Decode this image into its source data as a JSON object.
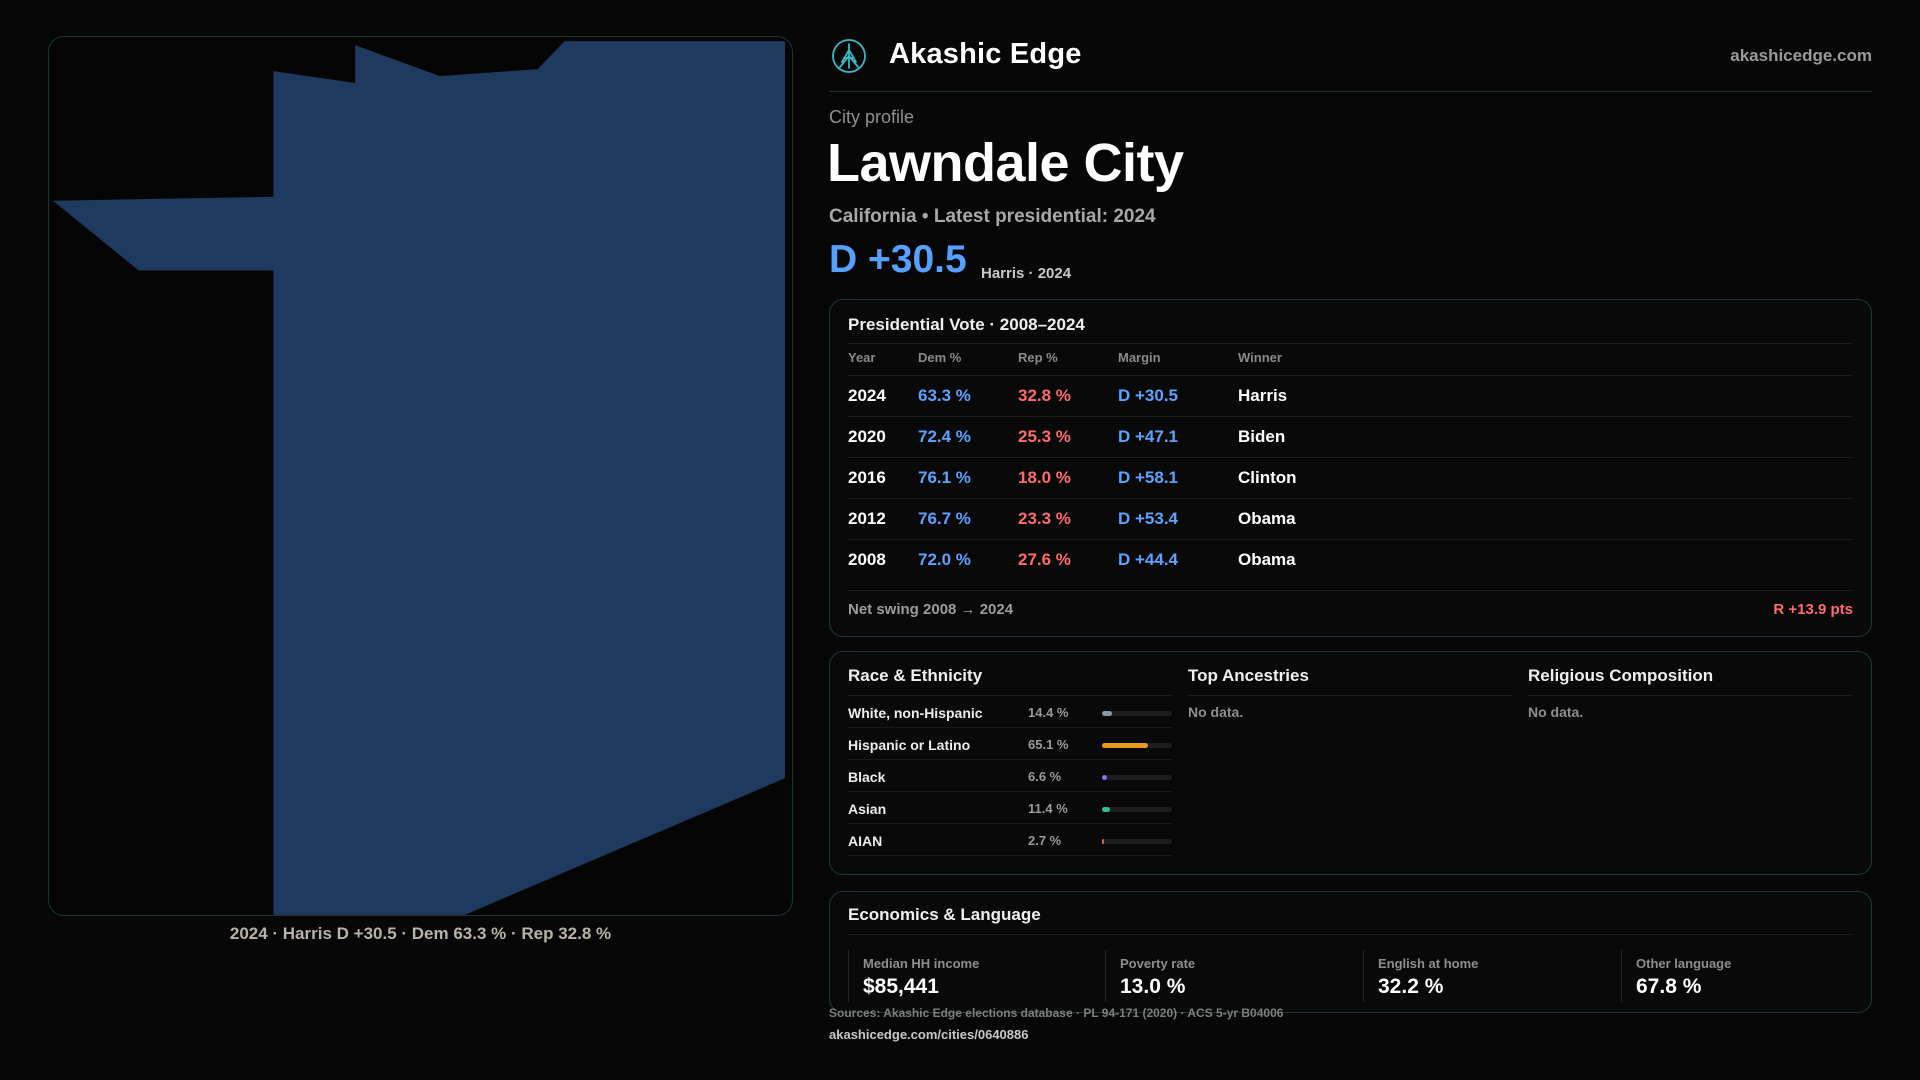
{
  "map": {
    "caption": "2024 · Harris D +30.5 · Dem 63.3 % · Rep 32.8 %",
    "fill_color": "#1e3a5f"
  },
  "header": {
    "brand": "Akashic Edge",
    "site_url": "akashicedge.com",
    "logo_icon": "tree-emblem-icon"
  },
  "profile": {
    "eyebrow": "City profile",
    "title": "Lawndale City",
    "subtitle": "California • Latest presidential: 2024",
    "margin": "D +30.5",
    "margin_note": "Harris · 2024",
    "dem_color": "#5da2ff",
    "rep_color": "#ff6b6b"
  },
  "vote": {
    "title": "Presidential Vote · 2008–2024",
    "headers": [
      "Year",
      "Dem %",
      "Rep %",
      "Margin",
      "Winner"
    ],
    "rows": [
      {
        "year": "2024",
        "dem": "63.3 %",
        "rep": "32.8 %",
        "margin": "D +30.5",
        "winner": "Harris"
      },
      {
        "year": "2020",
        "dem": "72.4 %",
        "rep": "25.3 %",
        "margin": "D +47.1",
        "winner": "Biden"
      },
      {
        "year": "2016",
        "dem": "76.1 %",
        "rep": "18.0 %",
        "margin": "D +58.1",
        "winner": "Clinton"
      },
      {
        "year": "2012",
        "dem": "76.7 %",
        "rep": "23.3 %",
        "margin": "D +53.4",
        "winner": "Obama"
      },
      {
        "year": "2008",
        "dem": "72.0 %",
        "rep": "27.6 %",
        "margin": "D +44.4",
        "winner": "Obama"
      }
    ],
    "swing_label": "Net swing 2008 → 2024",
    "swing_value": "R +13.9 pts"
  },
  "demographics": {
    "race": {
      "title": "Race & Ethnicity",
      "rows": [
        {
          "name": "White, non-Hispanic",
          "pct": "14.4 %",
          "fraction": 0.144,
          "color": "#8b95a1"
        },
        {
          "name": "Hispanic or Latino",
          "pct": "65.1 %",
          "fraction": 0.651,
          "color": "#e8981e"
        },
        {
          "name": "Black",
          "pct": "6.6 %",
          "fraction": 0.066,
          "color": "#8a6ff0"
        },
        {
          "name": "Asian",
          "pct": "11.4 %",
          "fraction": 0.114,
          "color": "#2fbf8f"
        },
        {
          "name": "AIAN",
          "pct": "2.7 %",
          "fraction": 0.027,
          "color": "#d9652b"
        }
      ]
    },
    "ancestry": {
      "title": "Top Ancestries",
      "empty": "No data."
    },
    "religion": {
      "title": "Religious Composition",
      "empty": "No data."
    }
  },
  "economics": {
    "title": "Economics & Language",
    "cells": [
      {
        "label": "Median HH income",
        "value": "$85,441"
      },
      {
        "label": "Poverty rate",
        "value": "13.0 %"
      },
      {
        "label": "English at home",
        "value": "32.2 %"
      },
      {
        "label": "Other language",
        "value": "67.8 %"
      }
    ]
  },
  "footer": {
    "sources": "Sources: Akashic Edge elections database · PL 94-171 (2020) · ACS 5-yr B04006",
    "url": "akashicedge.com/cities/0640886"
  }
}
